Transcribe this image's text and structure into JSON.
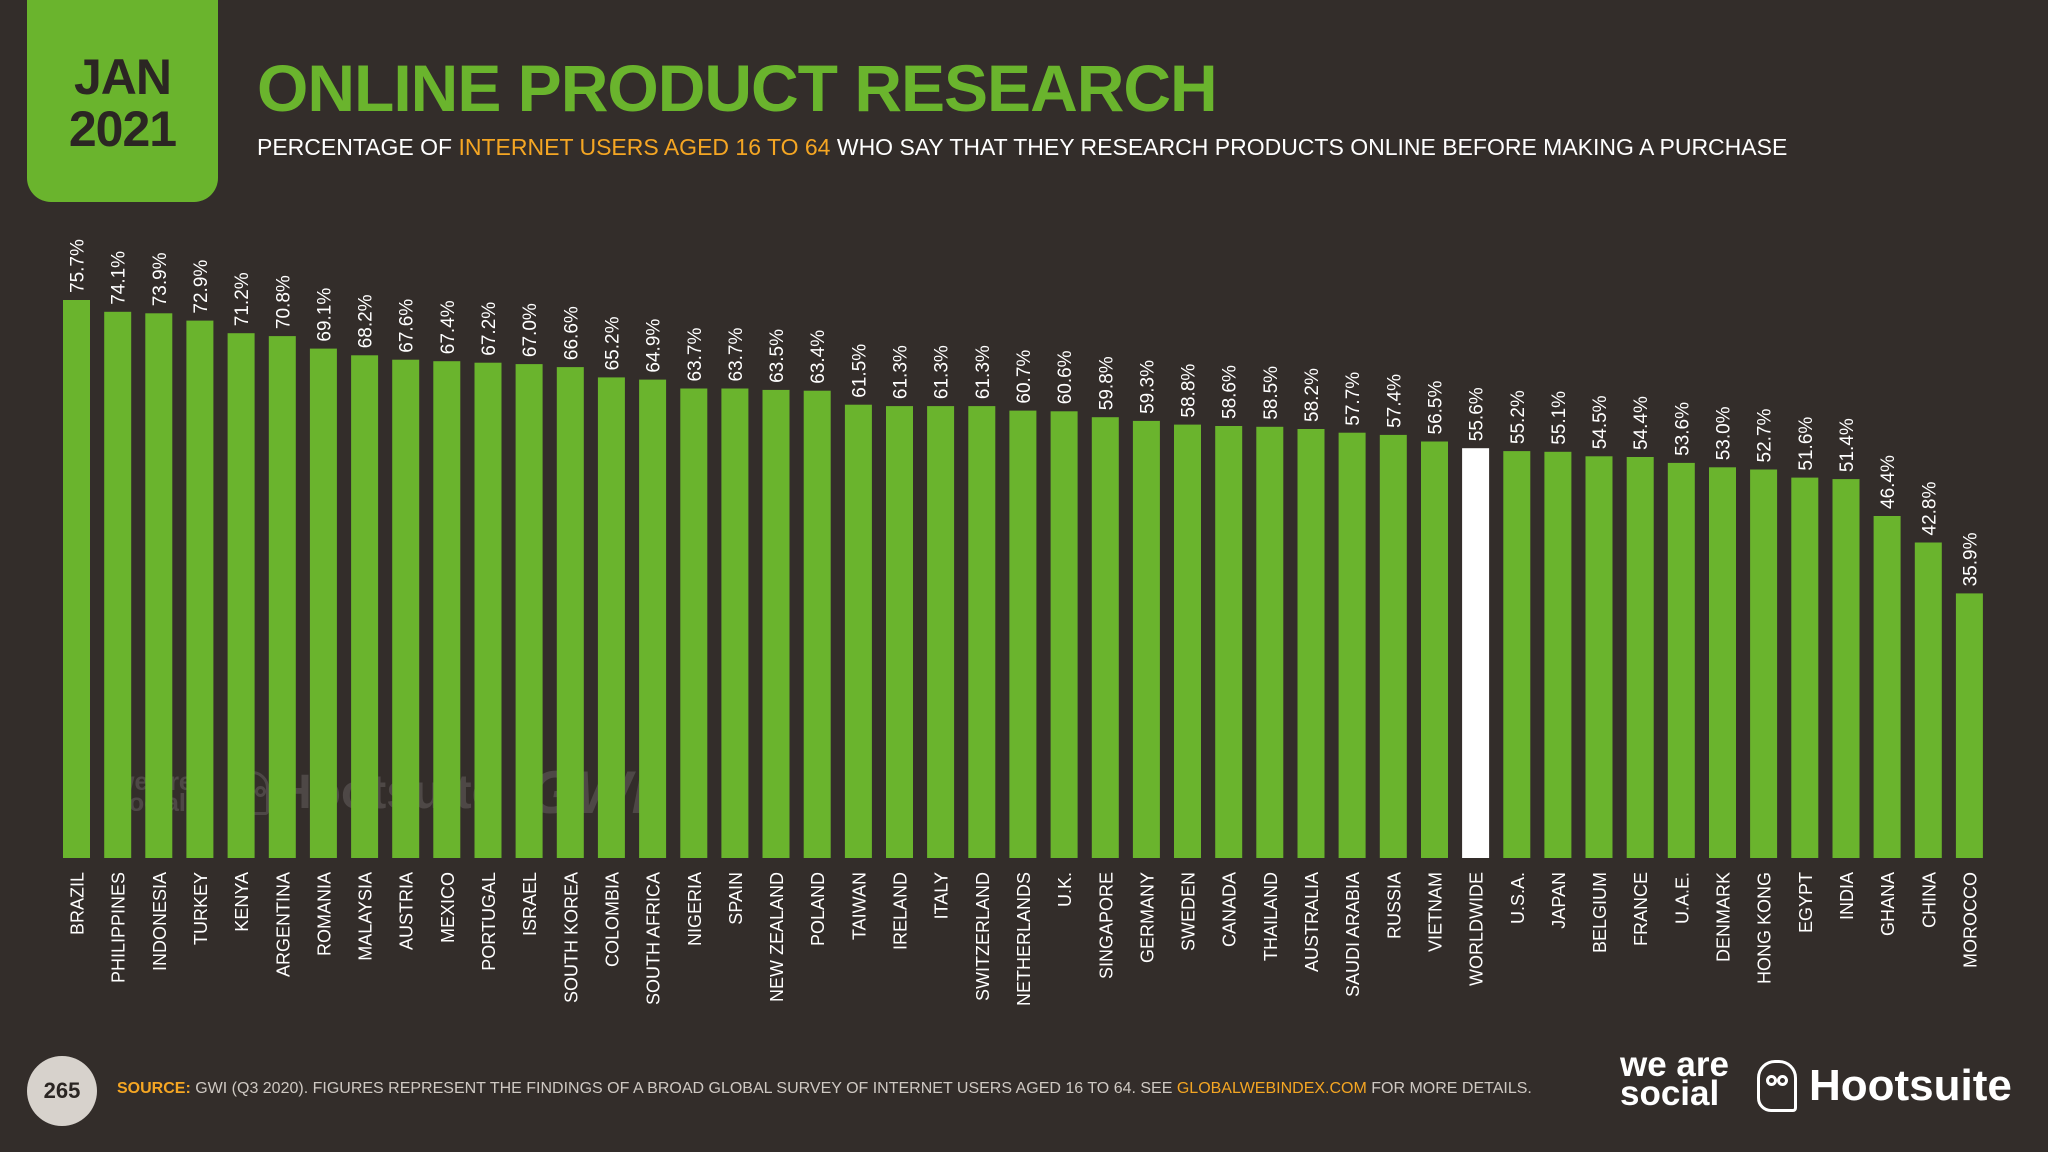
{
  "header": {
    "date_month": "JAN",
    "date_year": "2021",
    "title": "ONLINE PRODUCT RESEARCH",
    "subtitle_pre": "PERCENTAGE OF ",
    "subtitle_highlight": "INTERNET USERS AGED 16 TO 64",
    "subtitle_post": " WHO SAY THAT THEY RESEARCH PRODUCTS ONLINE BEFORE MAKING A PURCHASE"
  },
  "colors": {
    "background": "#332d2a",
    "bar": "#6ab42d",
    "highlight_bar": "#ffffff",
    "accent": "#f5a623",
    "text": "#ffffff"
  },
  "chart_data": {
    "type": "bar",
    "title": "ONLINE PRODUCT RESEARCH",
    "xlabel": "",
    "ylabel": "",
    "ylim": [
      0,
      80
    ],
    "value_suffix": "%",
    "highlight_category": "WORLDWIDE",
    "categories": [
      "BRAZIL",
      "PHILIPPINES",
      "INDONESIA",
      "TURKEY",
      "KENYA",
      "ARGENTINA",
      "ROMANIA",
      "MALAYSIA",
      "AUSTRIA",
      "MEXICO",
      "PORTUGAL",
      "ISRAEL",
      "SOUTH KOREA",
      "COLOMBIA",
      "SOUTH AFRICA",
      "NIGERIA",
      "SPAIN",
      "NEW ZEALAND",
      "POLAND",
      "TAIWAN",
      "IRELAND",
      "ITALY",
      "SWITZERLAND",
      "NETHERLANDS",
      "U.K.",
      "SINGAPORE",
      "GERMANY",
      "SWEDEN",
      "CANADA",
      "THAILAND",
      "AUSTRALIA",
      "SAUDI ARABIA",
      "RUSSIA",
      "VIETNAM",
      "WORLDWIDE",
      "U.S.A.",
      "JAPAN",
      "BELGIUM",
      "FRANCE",
      "U.A.E.",
      "DENMARK",
      "HONG KONG",
      "EGYPT",
      "INDIA",
      "GHANA",
      "CHINA",
      "MOROCCO"
    ],
    "values": [
      75.7,
      74.1,
      73.9,
      72.9,
      71.2,
      70.8,
      69.1,
      68.2,
      67.6,
      67.4,
      67.2,
      67.0,
      66.6,
      65.2,
      64.9,
      63.7,
      63.7,
      63.5,
      63.4,
      61.5,
      61.3,
      61.3,
      61.3,
      60.7,
      60.6,
      59.8,
      59.3,
      58.8,
      58.6,
      58.5,
      58.2,
      57.7,
      57.4,
      56.5,
      55.6,
      55.2,
      55.1,
      54.5,
      54.4,
      53.6,
      53.0,
      52.7,
      51.6,
      51.4,
      46.4,
      42.8,
      35.9
    ],
    "labels": [
      "75.7%",
      "74.1%",
      "73.9%",
      "72.9%",
      "71.2%",
      "70.8%",
      "69.1%",
      "68.2%",
      "67.6%",
      "67.4%",
      "67.2%",
      "67.0%",
      "66.6%",
      "65.2%",
      "64.9%",
      "63.7%",
      "63.7%",
      "63.5%",
      "63.4%",
      "61.5%",
      "61.3%",
      "61.3%",
      "61.3%",
      "60.7%",
      "60.6%",
      "59.8%",
      "59.3%",
      "58.8%",
      "58.6%",
      "58.5%",
      "58.2%",
      "57.7%",
      "57.4%",
      "56.5%",
      "55.6%",
      "55.2%",
      "55.1%",
      "54.5%",
      "54.4%",
      "53.6%",
      "53.0%",
      "52.7%",
      "51.6%",
      "51.4%",
      "46.4%",
      "42.8%",
      "35.9%"
    ]
  },
  "watermark": {
    "brand1": "we are social",
    "brand2": "Hootsuite",
    "brand3": "GWI."
  },
  "footer": {
    "page_number": "265",
    "source_label": "SOURCE:",
    "source_text": " GWI (Q3 2020). FIGURES REPRESENT THE FINDINGS OF A BROAD GLOBAL SURVEY OF INTERNET USERS AGED 16 TO 64. SEE ",
    "source_link": "GLOBALWEBINDEX.COM",
    "source_post": " FOR MORE DETAILS.",
    "logo1": "we are social",
    "logo2": "Hootsuite"
  }
}
